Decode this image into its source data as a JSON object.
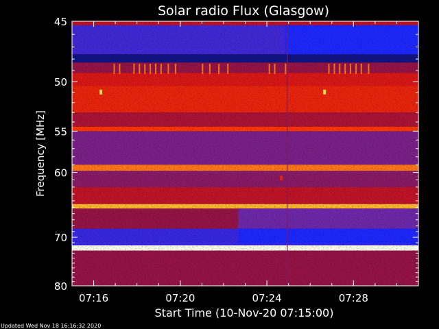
{
  "chart_data": {
    "type": "heatmap",
    "title": "Solar radio Flux (Glasgow)",
    "xlabel": "Start Time (10-Nov-20 07:15:00)",
    "ylabel": "Frequency [MHz]",
    "xlim": [
      "07:15:00",
      "07:31:00"
    ],
    "ylim": [
      45,
      80
    ],
    "y_scale": "reciprocal",
    "x_ticks": [
      "07:16",
      "07:20",
      "07:24",
      "07:28"
    ],
    "y_ticks": [
      45,
      50,
      55,
      60,
      70,
      80
    ],
    "colormap": "blue-red-yellow-white",
    "grid": false,
    "footer": "Updated Wed Nov 18 16:16:32 2020",
    "bands": [
      {
        "from_mhz": 45.0,
        "to_mhz": 45.3,
        "intensity": 0.55,
        "note": "upper edge"
      },
      {
        "from_mhz": 45.3,
        "to_mhz": 47.6,
        "intensity": 0.22,
        "note": "blue, brighter after 07:24"
      },
      {
        "from_mhz": 47.6,
        "to_mhz": 48.3,
        "intensity": 0.05
      },
      {
        "from_mhz": 48.3,
        "to_mhz": 49.2,
        "intensity": 0.45
      },
      {
        "from_mhz": 49.2,
        "to_mhz": 50.4,
        "intensity": 0.62
      },
      {
        "from_mhz": 50.4,
        "to_mhz": 53.0,
        "intensity": 0.7
      },
      {
        "from_mhz": 53.0,
        "to_mhz": 54.5,
        "intensity": 0.5
      },
      {
        "from_mhz": 54.5,
        "to_mhz": 55.0,
        "intensity": 0.8
      },
      {
        "from_mhz": 55.0,
        "to_mhz": 59.0,
        "intensity": 0.35
      },
      {
        "from_mhz": 59.0,
        "to_mhz": 59.8,
        "intensity": 0.85
      },
      {
        "from_mhz": 59.8,
        "to_mhz": 62.0,
        "intensity": 0.4
      },
      {
        "from_mhz": 62.0,
        "to_mhz": 64.5,
        "intensity": 0.55
      },
      {
        "from_mhz": 64.5,
        "to_mhz": 65.2,
        "intensity": 0.9
      },
      {
        "from_mhz": 65.2,
        "to_mhz": 68.5,
        "intensity": 0.45,
        "note": "weaker after 07:23"
      },
      {
        "from_mhz": 68.5,
        "to_mhz": 71.5,
        "intensity": 0.2,
        "note": "strong blue"
      },
      {
        "from_mhz": 71.5,
        "to_mhz": 72.5,
        "intensity": 1.0,
        "note": "white line"
      },
      {
        "from_mhz": 72.5,
        "to_mhz": 80.0,
        "intensity": 0.45
      }
    ],
    "events": [
      {
        "time": "07:16:20",
        "freq_mhz": 51.0,
        "note": "yellow spot"
      },
      {
        "time": "07:26:40",
        "freq_mhz": 51.0,
        "note": "yellow spot"
      },
      {
        "time": "07:24:40",
        "freq_mhz": 60.8,
        "note": "small blob"
      },
      {
        "time": "07:24:55",
        "note": "vertical line across band"
      }
    ]
  }
}
